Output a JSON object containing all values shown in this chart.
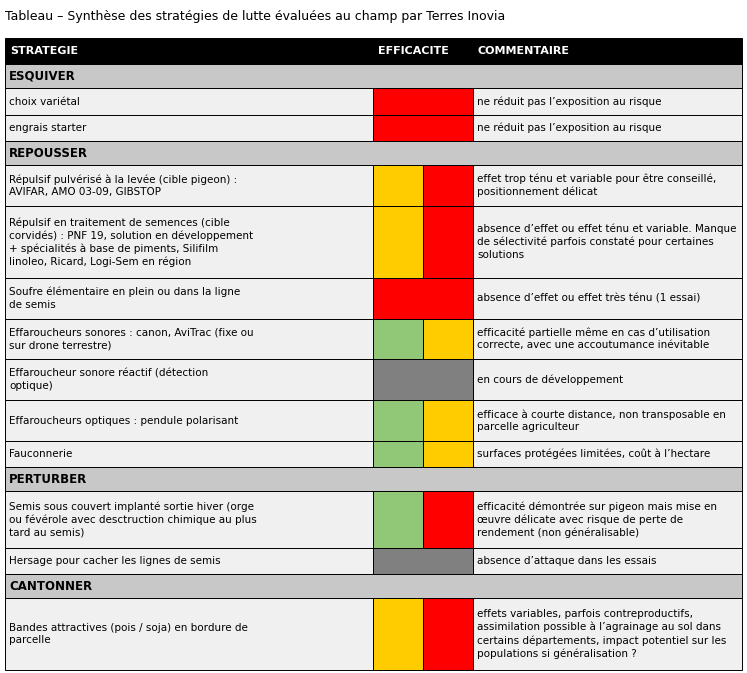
{
  "title": "Tableau – Synthèse des stratégies de lutte évaluées au champ par Terres Inovia",
  "header": [
    "STRATEGIE",
    "EFFICACITE",
    "COMMENTAIRE"
  ],
  "colors": {
    "red": "#ff0000",
    "yellow": "#ffcc00",
    "green_light": "#90c878",
    "gray": "#808080",
    "white": "#ffffff"
  },
  "sections": [
    {
      "name": "ESQUIVER",
      "rows": [
        {
          "strategie": "choix variétal",
          "efficacite": [
            [
              "red",
              1.0
            ]
          ],
          "commentaire": "ne réduit pas l’exposition au risque",
          "n_strat": 1,
          "n_comm": 1
        },
        {
          "strategie": "engrais starter",
          "efficacite": [
            [
              "red",
              1.0
            ]
          ],
          "commentaire": "ne réduit pas l’exposition au risque",
          "n_strat": 1,
          "n_comm": 1
        }
      ]
    },
    {
      "name": "REPOUSSER",
      "rows": [
        {
          "strategie": "Répulsif pulvérisé à la levée (cible pigeon) :\nAVIFAR, AMO 03-09, GIBSTOP",
          "efficacite": [
            [
              "yellow",
              0.5
            ],
            [
              "red",
              0.5
            ]
          ],
          "commentaire": "effet trop ténu et variable pour être conseillé,\npositionnement délicat",
          "n_strat": 2,
          "n_comm": 2
        },
        {
          "strategie": "Répulsif en traitement de semences (cible\ncorvidés) : PNF 19, solution en développement\n+ spécialités à base de piments, Silifilm\nlinoleo, Ricard, Logi-Sem en région",
          "efficacite": [
            [
              "yellow",
              0.5
            ],
            [
              "red",
              0.5
            ]
          ],
          "commentaire": "absence d’effet ou effet ténu et variable. Manque\nde sélectivité parfois constaté pour certaines\nsolutions",
          "n_strat": 4,
          "n_comm": 3
        },
        {
          "strategie": "Soufre élémentaire en plein ou dans la ligne\nde semis",
          "efficacite": [
            [
              "red",
              1.0
            ]
          ],
          "commentaire": "absence d’effet ou effet très ténu (1 essai)",
          "n_strat": 2,
          "n_comm": 1
        },
        {
          "strategie": "Effaroucheurs sonores : canon, AviTrac (fixe ou\nsur drone terrestre)",
          "efficacite": [
            [
              "green_light",
              0.5
            ],
            [
              "yellow",
              0.5
            ]
          ],
          "commentaire": "efficacité partielle même en cas d’utilisation\ncorrecte, avec une accoutumance inévitable",
          "n_strat": 2,
          "n_comm": 2
        },
        {
          "strategie": "Effaroucheur sonore réactif (détection\noptique)",
          "efficacite": [
            [
              "gray",
              1.0
            ]
          ],
          "commentaire": "en cours de développement",
          "n_strat": 2,
          "n_comm": 1
        },
        {
          "strategie": "Effaroucheurs optiques : pendule polarisant",
          "efficacite": [
            [
              "green_light",
              0.5
            ],
            [
              "yellow",
              0.5
            ]
          ],
          "commentaire": "efficace à courte distance, non transposable en\nparcelle agriculteur",
          "n_strat": 1,
          "n_comm": 2
        },
        {
          "strategie": "Fauconnerie",
          "efficacite": [
            [
              "green_light",
              0.5
            ],
            [
              "yellow",
              0.5
            ]
          ],
          "commentaire": "surfaces protégées limitées, coût à l’hectare",
          "n_strat": 1,
          "n_comm": 1
        }
      ]
    },
    {
      "name": "PERTURBER",
      "rows": [
        {
          "strategie": "Semis sous couvert implanté sortie hiver (orge\nou févérole avec desctruction chimique au plus\ntard au semis)",
          "efficacite": [
            [
              "green_light",
              0.5
            ],
            [
              "red",
              0.5
            ]
          ],
          "commentaire": "efficacité démontrée sur pigeon mais mise en\nœuvre délicate avec risque de perte de\nrendement (non généralisable)",
          "n_strat": 3,
          "n_comm": 3
        },
        {
          "strategie": "Hersage pour cacher les lignes de semis",
          "efficacite": [
            [
              "gray",
              1.0
            ]
          ],
          "commentaire": "absence d’attaque dans les essais",
          "n_strat": 1,
          "n_comm": 1
        }
      ]
    },
    {
      "name": "CANTONNER",
      "rows": [
        {
          "strategie": "Bandes attractives (pois / soja) en bordure de\nparcelle",
          "efficacite": [
            [
              "yellow",
              0.5
            ],
            [
              "red",
              0.5
            ]
          ],
          "commentaire": "effets variables, parfois contreproductifs,\nassimilation possible à l’agrainage au sol dans\ncertains départements, impact potentiel sur les\npopulations si généralisation ?",
          "n_strat": 2,
          "n_comm": 4
        }
      ]
    }
  ]
}
